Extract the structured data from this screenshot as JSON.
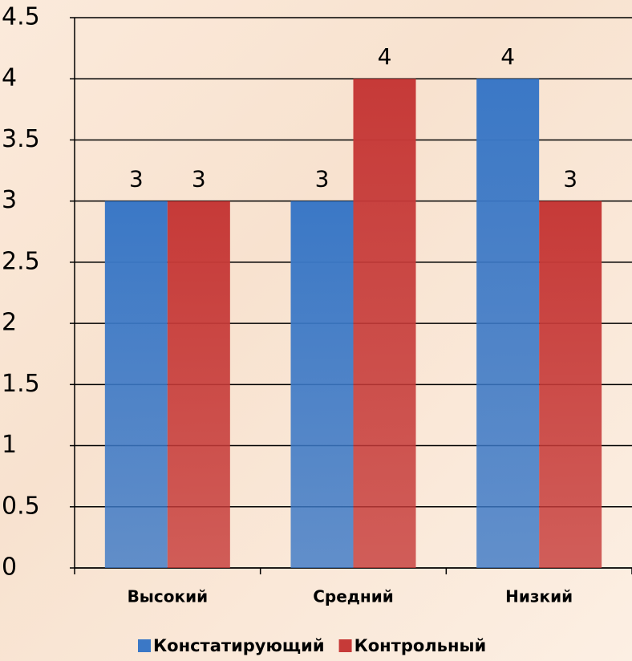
{
  "chart_data": {
    "type": "bar",
    "categories": [
      "Высокий",
      "Средний",
      "Низкий"
    ],
    "series": [
      {
        "name": "Констатирующий",
        "color": "#3b78c6",
        "values": [
          3,
          3,
          4
        ]
      },
      {
        "name": "Контрольный",
        "color": "#c63a38",
        "values": [
          3,
          4,
          3
        ]
      }
    ],
    "ylim": [
      0,
      4.5
    ],
    "yticks": [
      0,
      0.5,
      1,
      1.5,
      2,
      2.5,
      3,
      3.5,
      4,
      4.5
    ],
    "grid": true,
    "legend": "bottom"
  }
}
